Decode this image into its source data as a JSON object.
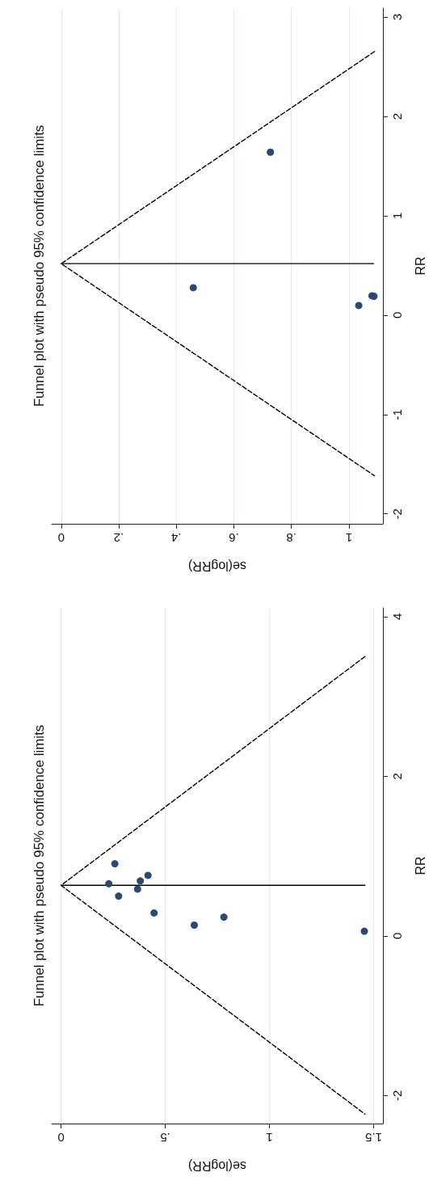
{
  "chart_data": [
    {
      "type": "scatter",
      "title": "Funnel plot with pseudo 95% confidence limits",
      "xlabel": "se(logRR)",
      "ylabel": "RR",
      "ylim": [
        -2.1,
        3.09
      ],
      "yticks": [
        -2,
        -1,
        0,
        1,
        2,
        3
      ],
      "xlim": [
        -0.033,
        1.118
      ],
      "xticks": [
        0,
        {
          "value": 0.2,
          "label": ".2"
        },
        {
          "value": 0.4,
          "label": ".4"
        },
        {
          "value": 0.6,
          "label": ".6"
        },
        {
          "value": 0.8,
          "label": ".8"
        },
        1
      ],
      "grid": "x",
      "marker": "circle",
      "series": [
        {
          "type": "scatter",
          "color": "#2a4a74",
          "values": [
            1.64,
            0.276,
            0.097,
            0.195,
            0.19
          ],
          "x": [
            0.727,
            0.459,
            1.034,
            1.08,
            1.087
          ]
        },
        {
          "type": "line",
          "color": "#000000",
          "line_style": "solid",
          "marker": "none",
          "values": [
            0.518,
            0.518
          ],
          "x": [
            0,
            1.086
          ]
        },
        {
          "type": "line",
          "color": "#000000",
          "line_style": "dashed",
          "marker": "none",
          "values": [
            2.653,
            0.518,
            -1.617
          ],
          "x": [
            1.089,
            0,
            1.089
          ]
        }
      ]
    },
    {
      "type": "scatter",
      "title": "Funnel plot with pseudo 95% confidence limits",
      "xlabel": "se(logRR)",
      "ylabel": "RR",
      "ylim": [
        -2.35,
        4.11
      ],
      "yticks": [
        -2,
        0,
        2,
        4
      ],
      "xlim": [
        -0.045,
        1.544
      ],
      "xticks": [
        0,
        {
          "value": 0.5,
          "label": ".5"
        },
        1,
        1.5
      ],
      "grid": "x",
      "marker": "circle",
      "series": [
        {
          "type": "scatter",
          "color": "#2a4a74",
          "values": [
            0.905,
            0.759,
            0.689,
            0.654,
            0.587,
            0.5,
            0.288,
            0.136,
            0.236,
            0.059
          ],
          "x": [
            0.258,
            0.417,
            0.38,
            0.229,
            0.367,
            0.276,
            0.446,
            0.639,
            0.781,
            1.455
          ]
        },
        {
          "type": "line",
          "color": "#000000",
          "line_style": "solid",
          "marker": "none",
          "values": [
            0.634,
            0.634
          ],
          "x": [
            0,
            1.458
          ]
        },
        {
          "type": "line",
          "color": "#000000",
          "line_style": "dashed",
          "marker": "none",
          "values": [
            3.5,
            0.634,
            -2.232
          ],
          "x": [
            1.458,
            0,
            1.458
          ]
        }
      ]
    }
  ]
}
